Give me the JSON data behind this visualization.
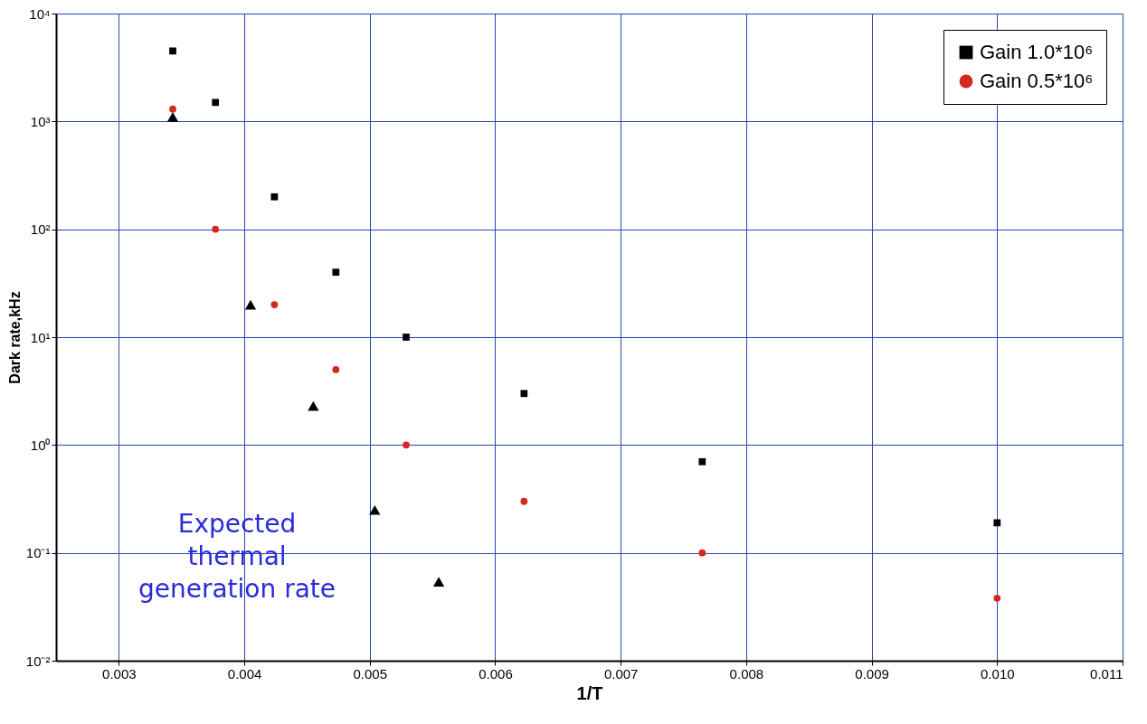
{
  "chart_data": {
    "type": "scatter",
    "xlabel": "1/T",
    "ylabel": "Dark rate,kHz",
    "log": "y",
    "xlim": [
      0.0025,
      0.011
    ],
    "xticks": [
      0.003,
      0.004,
      0.005,
      0.006,
      0.007,
      0.008,
      0.009,
      {
        "value": 0.01,
        "label": "0.010"
      },
      0.011
    ],
    "ylim": [
      0.01,
      10000
    ],
    "yticks": [
      {
        "value": 0.01,
        "label": "10⁻²"
      },
      {
        "value": 0.1,
        "label": "10⁻¹"
      },
      {
        "value": 1,
        "label": "10⁰"
      },
      {
        "value": 10,
        "label": "10¹"
      },
      {
        "value": 100,
        "label": "10²"
      },
      {
        "value": 1000,
        "label": "10³"
      },
      {
        "value": 10000,
        "label": "10⁴"
      }
    ],
    "grid": true,
    "legend": "top right",
    "series": [
      {
        "name": "Gain 1.0*10⁶",
        "color": "#000000",
        "marker": "square",
        "x": [
          0.00343,
          0.00377,
          0.00424,
          0.00473,
          0.00529,
          0.00623,
          0.00765,
          0.01
        ],
        "values": [
          4500,
          1500,
          200,
          40,
          10,
          3,
          0.7,
          0.19
        ]
      },
      {
        "name": "Gain 0.5*10⁶",
        "color": "#d42a1e",
        "marker": "circle",
        "x": [
          0.00343,
          0.00377,
          0.00424,
          0.00473,
          0.00529,
          0.00623,
          0.00765,
          0.01
        ],
        "values": [
          1300,
          100,
          20,
          5,
          1,
          0.3,
          0.1,
          0.038
        ]
      },
      {
        "color": "#000000",
        "marker": "triangle",
        "x": [
          0.00343,
          0.00405,
          0.00455,
          0.00504,
          0.00555
        ],
        "values": [
          1100,
          20,
          2.3,
          0.25,
          0.054
        ]
      }
    ],
    "annotations": [
      "Expected\nthermal\ngeneration rate"
    ]
  }
}
